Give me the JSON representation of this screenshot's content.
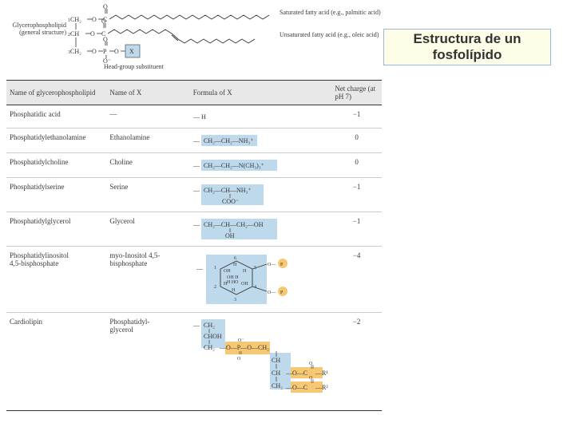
{
  "title": "Estructura de un fosfolípido",
  "structure": {
    "left_label": "Glycerophospholipid\n(general structure)",
    "right_label_1": "Saturated fatty acid\n(e.g., palmitic acid)",
    "right_label_2": "Unsaturated fatty acid\n(e.g., oleic acid)",
    "head_label": "Head-group\nsubstituent",
    "x_label": "X"
  },
  "table": {
    "headers": [
      "Name of\nglycerophospholipid",
      "Name of X",
      "Formula of X",
      "Net charge\n(at pH 7)"
    ],
    "rows": [
      {
        "name": "Phosphatidic acid",
        "x_name": "—",
        "charge": "−1",
        "formula_key": "h"
      },
      {
        "name": "Phosphatidylethanolamine",
        "x_name": "Ethanolamine",
        "charge": "0",
        "formula_key": "ethanolamine"
      },
      {
        "name": "Phosphatidylcholine",
        "x_name": "Choline",
        "charge": "0",
        "formula_key": "choline"
      },
      {
        "name": "Phosphatidylserine",
        "x_name": "Serine",
        "charge": "−1",
        "formula_key": "serine"
      },
      {
        "name": "Phosphatidylglycerol",
        "x_name": "Glycerol",
        "charge": "−1",
        "formula_key": "glycerol"
      },
      {
        "name": "Phosphatidylinositol\n 4,5-bisphosphate",
        "x_name": "myo-Inositol 4,5-\nbisphosphate",
        "charge": "−4",
        "formula_key": "inositol"
      },
      {
        "name": "Cardiolipin",
        "x_name": "Phosphatidyl-\nglycerol",
        "charge": "−2",
        "formula_key": "cardiolipin"
      }
    ]
  },
  "colors": {
    "blue_highlight": "#bfd9ec",
    "orange_highlight": "#f7c873",
    "title_bg": "#fdfde8",
    "title_border": "#9bb6d8",
    "header_bg": "#e8e8e8"
  }
}
